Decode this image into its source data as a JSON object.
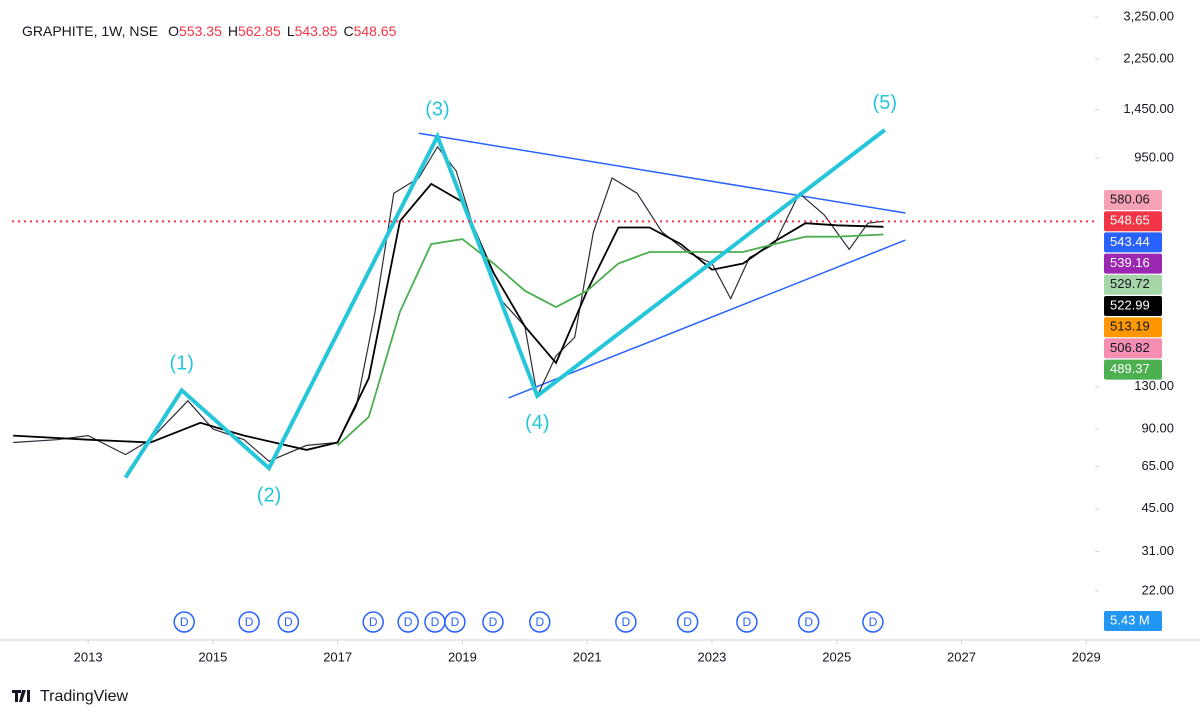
{
  "chart_data": {
    "type": "line",
    "title": "GRAPHITE, 1W, NSE",
    "ohlc": [
      {
        "key": "O",
        "value": "553.35"
      },
      {
        "key": "H",
        "value": "562.85"
      },
      {
        "key": "L",
        "value": "543.85"
      },
      {
        "key": "C",
        "value": "548.65"
      }
    ],
    "log_scale": true,
    "xlim": [
      2011.78,
      2029.14
    ],
    "xticks": [
      2013,
      2015,
      2017,
      2019,
      2021,
      2023,
      2025,
      2027,
      2029
    ],
    "ylim": [
      14.34,
      3767
    ],
    "yticks": [
      {
        "value": 3250,
        "label": "3,250.00"
      },
      {
        "value": 2250,
        "label": "2,250.00"
      },
      {
        "value": 1450,
        "label": "1,450.00"
      },
      {
        "value": 950,
        "label": "950.00"
      },
      {
        "value": 130,
        "label": "130.00"
      },
      {
        "value": 90,
        "label": "90.00"
      },
      {
        "value": 65,
        "label": "65.00"
      },
      {
        "value": 45,
        "label": "45.00"
      },
      {
        "value": 31,
        "label": "31.00"
      },
      {
        "value": 22,
        "label": "22.00"
      }
    ],
    "series": [
      {
        "color": "#2a2e39",
        "x": [
          2011.8,
          2012.5,
          2013.0,
          2013.6,
          2014.0,
          2014.6,
          2015.0,
          2015.5,
          2015.9,
          2016.5,
          2017.0,
          2017.3,
          2017.6,
          2017.9,
          2018.3,
          2018.6,
          2018.9,
          2019.2,
          2019.6,
          2020.0,
          2020.2,
          2020.5,
          2020.8,
          2021.1,
          2021.4,
          2021.8,
          2022.2,
          2022.6,
          2023.0,
          2023.3,
          2023.6,
          2024.0,
          2024.4,
          2024.8,
          2025.2,
          2025.5,
          2025.75
        ],
        "values": [
          80,
          82,
          85,
          72,
          82,
          115,
          90,
          82,
          68,
          78,
          80,
          110,
          250,
          700,
          800,
          1050,
          850,
          500,
          280,
          220,
          120,
          170,
          200,
          500,
          800,
          700,
          500,
          420,
          380,
          280,
          400,
          450,
          700,
          580,
          430,
          540,
          548.65
        ]
      },
      {
        "color": "#000000",
        "x": [
          2011.8,
          2013.0,
          2014.0,
          2014.8,
          2015.5,
          2016.5,
          2017.0,
          2017.5,
          2018.0,
          2018.5,
          2019.0,
          2019.5,
          2020.0,
          2020.5,
          2021.0,
          2021.5,
          2022.0,
          2022.5,
          2023.0,
          2023.5,
          2024.0,
          2024.5,
          2025.0,
          2025.75
        ],
        "values": [
          85,
          82,
          80,
          95,
          85,
          75,
          80,
          140,
          550,
          760,
          650,
          350,
          220,
          160,
          300,
          520,
          520,
          450,
          360,
          380,
          460,
          540,
          530,
          523
        ]
      },
      {
        "color": "#4caf50",
        "x": [
          2017.0,
          2017.5,
          2018.0,
          2018.5,
          2019.0,
          2019.5,
          2020.0,
          2020.5,
          2021.0,
          2021.5,
          2022.0,
          2022.5,
          2023.0,
          2023.5,
          2024.0,
          2024.5,
          2025.0,
          2025.75
        ],
        "values": [
          78,
          100,
          250,
          450,
          470,
          380,
          300,
          260,
          300,
          380,
          420,
          420,
          420,
          420,
          450,
          480,
          480,
          489
        ]
      }
    ],
    "wave": {
      "color": "#26c6da",
      "x": [
        2013.6,
        2014.5,
        2015.9,
        2018.6,
        2020.2,
        2025.77
      ],
      "values": [
        59,
        126,
        64,
        1150,
        120,
        1216
      ],
      "labels": [
        null,
        "(1)",
        "(2)",
        "(3)",
        "(4)",
        "(5)"
      ]
    },
    "trendlines": [
      {
        "color": "#2962ff",
        "x": [
          2018.3,
          2026.1
        ],
        "values": [
          1180,
          590
        ]
      },
      {
        "color": "#2962ff",
        "x": [
          2019.74,
          2026.1
        ],
        "values": [
          118,
          466
        ]
      }
    ],
    "price_labels": [
      {
        "value": 580.06,
        "color": "#f7a1b5",
        "text_color": "#131722"
      },
      {
        "value": 548.65,
        "color": "#f23645",
        "text_color": "#ffffff"
      },
      {
        "value": 543.44,
        "color": "#2962ff",
        "text_color": "#ffffff"
      },
      {
        "value": 539.16,
        "color": "#9c27b0",
        "text_color": "#ffffff"
      },
      {
        "value": 529.72,
        "color": "#a5d6a7",
        "text_color": "#131722"
      },
      {
        "value": 522.99,
        "color": "#000000",
        "text_color": "#ffffff"
      },
      {
        "value": 513.19,
        "color": "#ff9800",
        "text_color": "#131722"
      },
      {
        "value": 506.82,
        "color": "#f48fb1",
        "text_color": "#131722"
      },
      {
        "value": 489.37,
        "color": "#4caf50",
        "text_color": "#ffffff"
      }
    ],
    "volume_label": "5.43 M",
    "dividends": {
      "label": "D",
      "x": [
        2014.54,
        2015.58,
        2016.21,
        2017.57,
        2018.13,
        2018.56,
        2018.88,
        2019.49,
        2020.24,
        2021.62,
        2022.61,
        2023.56,
        2024.55,
        2025.58
      ]
    },
    "brand": "TradingView"
  }
}
